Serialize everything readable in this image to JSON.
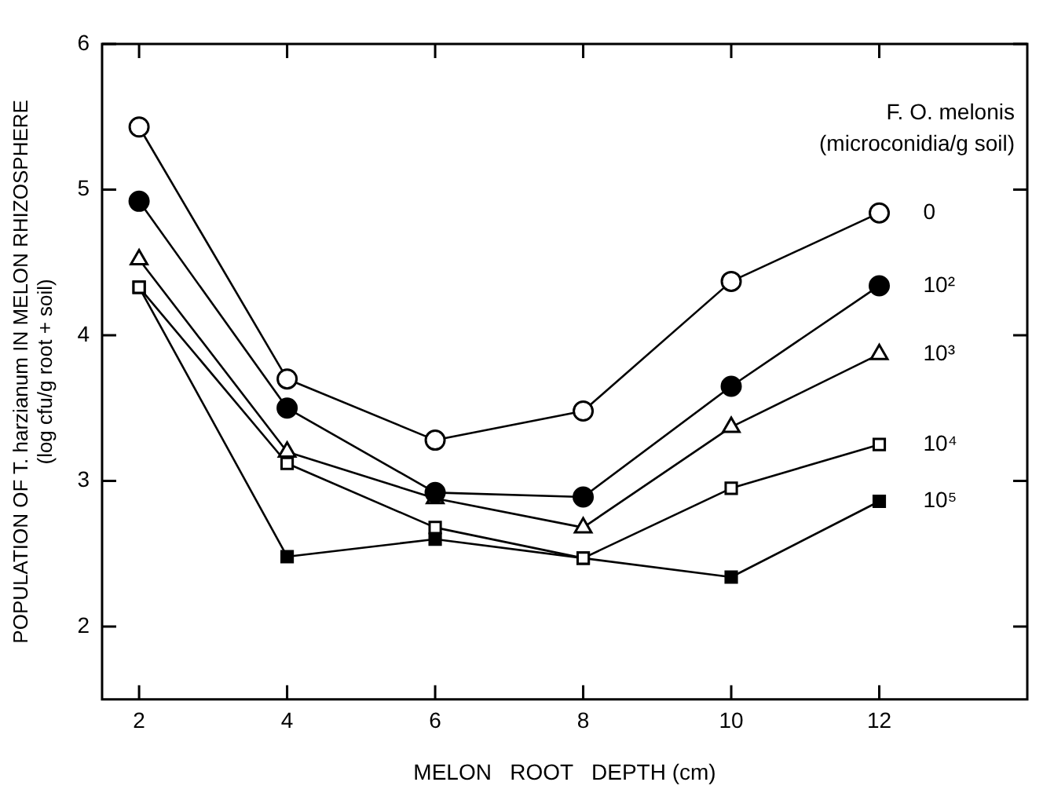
{
  "chart_data": {
    "type": "line",
    "xlabel": "MELON   ROOT   DEPTH (cm)",
    "ylabel": "POPULATION OF T. harzianum IN MELON RHIZOSPHERE\n(log cfu/g root + soil)",
    "legend_title": "F. O. melonis\n(microconidia/g soil)",
    "x": [
      2,
      4,
      6,
      8,
      10,
      12
    ],
    "xlim": [
      1.5,
      14
    ],
    "xticks": [
      2,
      4,
      6,
      8,
      10,
      12
    ],
    "ylim": [
      1.5,
      6
    ],
    "yticks": [
      2,
      3,
      4,
      5,
      6
    ],
    "grid": false,
    "line_style": "solid",
    "series": [
      {
        "name": "0",
        "color": "#ffffff",
        "marker": "circle",
        "values": [
          5.43,
          3.7,
          3.28,
          3.48,
          4.37,
          4.84
        ]
      },
      {
        "name": "10²",
        "color": "#000000",
        "marker": "circle",
        "values": [
          4.92,
          3.5,
          2.92,
          2.89,
          3.65,
          4.34
        ]
      },
      {
        "name": "10³",
        "color": "#ffffff",
        "marker": "triangle",
        "values": [
          4.52,
          3.2,
          2.88,
          2.68,
          3.37,
          3.87
        ]
      },
      {
        "name": "10⁴",
        "color": "#ffffff",
        "marker": "square",
        "values": [
          4.33,
          3.12,
          2.68,
          2.47,
          2.95,
          3.25
        ]
      },
      {
        "name": "10⁵",
        "color": "#000000",
        "marker": "square",
        "values": [
          4.33,
          2.48,
          2.6,
          2.47,
          2.34,
          2.86
        ]
      }
    ]
  }
}
